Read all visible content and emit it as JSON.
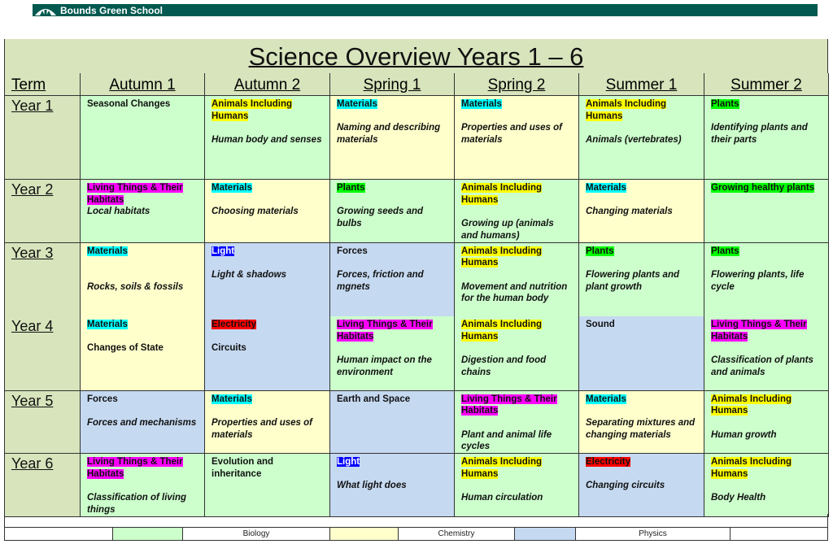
{
  "header": {
    "school_name": "Bounds Green School",
    "logo_icon": "tree-arch-logo",
    "bar_color": "#03594f"
  },
  "title": "Science Overview Years 1 – 6",
  "columns": [
    "Term",
    "Autumn 1",
    "Autumn 2",
    "Spring 1",
    "Spring 2",
    "Summer 1",
    "Summer 2"
  ],
  "subject_colors": {
    "biology": "#ccffcc",
    "chemistry": "#ffffcc",
    "physics": "#c5d9f1"
  },
  "tag_colors": {
    "animals": "#ffff00",
    "materials": "#00ffff",
    "plants": "#00ff00",
    "living": "#ff00ff",
    "light": "#0000ff",
    "electricity": "#ff0000",
    "forces": "#d9d9d9"
  },
  "rows": [
    {
      "term": "Year 1",
      "cells": [
        {
          "subject": "biology",
          "plain": "Seasonal Changes"
        },
        {
          "subject": "biology",
          "tag": "Animals Including Humans",
          "tag_color": "animals",
          "desc": "Human body and senses",
          "italic": true
        },
        {
          "subject": "chemistry",
          "tag": "Materials",
          "tag_color": "materials",
          "desc": "Naming and describing materials",
          "italic": true
        },
        {
          "subject": "chemistry",
          "tag": "Materials",
          "tag_color": "materials",
          "desc": "Properties and uses of materials",
          "italic": true
        },
        {
          "subject": "biology",
          "tag": "Animals Including Humans",
          "tag_color": "animals",
          "desc": "Animals (vertebrates)",
          "italic": true
        },
        {
          "subject": "biology",
          "tag": "Plants",
          "tag_color": "plants",
          "desc": "Identifying plants and their parts",
          "italic": true
        }
      ]
    },
    {
      "term": "Year 2",
      "cells": [
        {
          "subject": "biology",
          "tag": "Living Things & Their Habitats",
          "tag_color": "living",
          "desc": "Local habitats",
          "italic": true,
          "tight": true
        },
        {
          "subject": "chemistry",
          "tag": "Materials",
          "tag_color": "materials",
          "desc": "Choosing materials",
          "italic": true
        },
        {
          "subject": "biology",
          "tag": "Plants",
          "tag_color": "plants",
          "desc": "Growing seeds and bulbs",
          "italic": true
        },
        {
          "subject": "biology",
          "tag": "Animals Including Humans",
          "tag_color": "animals",
          "desc": "Growing up (animals and humans)",
          "italic": true
        },
        {
          "subject": "chemistry",
          "tag": "Materials",
          "tag_color": "materials",
          "desc": "Changing materials",
          "italic": true
        },
        {
          "subject": "biology",
          "tag": "Growing healthy plants",
          "tag_color": "plants"
        }
      ]
    },
    {
      "term": "Year 3",
      "cells": [
        {
          "subject": "chemistry",
          "tag": "Materials",
          "tag_color": "materials",
          "desc": "Rocks, soils & fossils",
          "italic": true,
          "wide": true
        },
        {
          "subject": "physics",
          "tag": "Light",
          "tag_color": "light",
          "tag_text_color": "#ffffff",
          "desc": "Light & shadows",
          "italic": true
        },
        {
          "subject": "physics",
          "tag": "Forces",
          "desc": "Forces, friction and mgnets",
          "italic": true
        },
        {
          "subject": "biology",
          "tag": "Animals Including Humans",
          "tag_color": "animals",
          "desc": "Movement and nutrition for the human body",
          "italic": true
        },
        {
          "subject": "biology",
          "tag": "Plants",
          "tag_color": "plants",
          "desc": "Flowering plants and plant growth",
          "italic": true
        },
        {
          "subject": "biology",
          "tag": "Plants",
          "tag_color": "plants",
          "desc": "Flowering plants, life cycle",
          "italic": true
        }
      ]
    },
    {
      "term": "Year 4",
      "cells": [
        {
          "subject": "chemistry",
          "tag": " Materials",
          "tag_color": "materials",
          "desc": "Changes of State",
          "italic": false
        },
        {
          "subject": "physics",
          "tag": "Electricity",
          "tag_color": "electricity",
          "desc": "Circuits",
          "italic": false
        },
        {
          "subject": "biology",
          "tag": "Living Things & Their Habitats",
          "tag_color": "living",
          "desc": "Human impact on the environment",
          "italic": true
        },
        {
          "subject": "biology",
          "tag": "Animals Including Humans",
          "tag_color": "animals",
          "desc": "Digestion and food chains",
          "italic": true
        },
        {
          "subject": "physics",
          "plain": "Sound"
        },
        {
          "subject": "biology",
          "tag": "Living Things & Their Habitats",
          "tag_color": "living",
          "desc": "Classification of plants and animals",
          "italic": true
        }
      ]
    },
    {
      "term": "Year 5",
      "cells": [
        {
          "subject": "physics",
          "tag": "Forces",
          "desc": "Forces and mechanisms",
          "italic": true
        },
        {
          "subject": "chemistry",
          "tag": "Materials",
          "tag_color": "materials",
          "desc": "Properties and uses of materials",
          "italic": true
        },
        {
          "subject": "physics",
          "plain": "Earth and Space"
        },
        {
          "subject": "biology",
          "tag": "Living Things & Their Habitats",
          "tag_color": "living",
          "desc": "Plant and animal life cycles",
          "italic": true
        },
        {
          "subject": "chemistry",
          "tag": "Materials",
          "tag_color": "materials",
          "desc": "Separating mixtures and changing materials",
          "italic": true
        },
        {
          "subject": "biology",
          "tag": "Animals Including Humans",
          "tag_color": "animals",
          "desc": "Human growth",
          "italic": true
        }
      ]
    },
    {
      "term": "Year 6",
      "cells": [
        {
          "subject": "biology",
          "tag": "Living Things & Their Habitats",
          "tag_color": "living",
          "desc": "Classification of living things",
          "italic": true
        },
        {
          "subject": "biology",
          "plain": "Evolution and inheritance"
        },
        {
          "subject": "physics",
          "tag": "Light",
          "tag_color": "light",
          "tag_text_color": "#ffffff",
          "desc": "What light does",
          "italic": true
        },
        {
          "subject": "biology",
          "tag": "Animals Including Humans",
          "tag_color": "animals",
          "desc": "Human circulation",
          "italic": true
        },
        {
          "subject": "physics",
          "tag": "Electricity",
          "tag_color": "electricity",
          "desc": "Changing circuits",
          "italic": true
        },
        {
          "subject": "biology",
          "tag": "Animals Including Humans",
          "tag_color": "animals",
          "desc": "Body Health",
          "italic": true
        }
      ]
    }
  ],
  "legend": {
    "biology": "Biology",
    "chemistry": "Chemistry",
    "physics": "Physics"
  }
}
